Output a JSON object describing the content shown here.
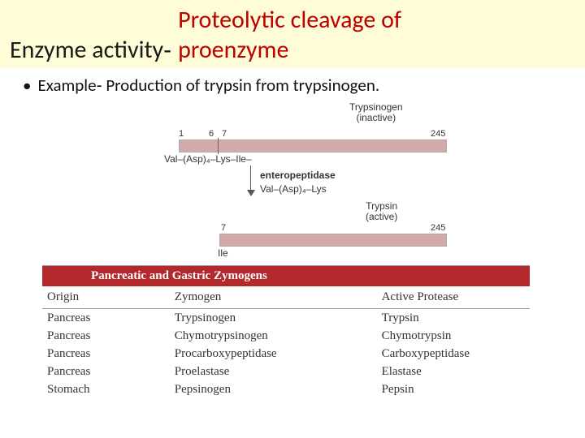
{
  "title": {
    "left": "Enzyme activity‐",
    "right_line1": "Proteolytic cleavage of",
    "right_line2": "proenzyme"
  },
  "bullet": {
    "text": "Example‐ Production of trypsin from trypsinogen."
  },
  "diagram": {
    "top_label_l1": "Trypsinogen",
    "top_label_l2": "(inactive)",
    "bar1": {
      "n1": "1",
      "n6": "6",
      "n7": "7",
      "nEnd": "245",
      "color": "#d3a9a9"
    },
    "seq1": "Val–(Asp)₄–Lys–Ile–",
    "enzyme": "enteropeptidase",
    "cleaved": "Val–(Asp)₄–Lys",
    "trypsin_l1": "Trypsin",
    "trypsin_l2": "(active)",
    "bar2": {
      "n7": "7",
      "nEnd": "245",
      "res": "Ile",
      "color": "#d3a9a9"
    }
  },
  "table": {
    "title": "Pancreatic and Gastric Zymogens",
    "title_bg": "#b3282d",
    "headers": {
      "origin": "Origin",
      "zymogen": "Zymogen",
      "active": "Active Protease"
    },
    "rows": [
      {
        "origin": "Pancreas",
        "zymogen": "Trypsinogen",
        "active": "Trypsin"
      },
      {
        "origin": "Pancreas",
        "zymogen": "Chymotrypsinogen",
        "active": "Chymotrypsin"
      },
      {
        "origin": "Pancreas",
        "zymogen": "Procarboxypeptidase",
        "active": "Carboxypeptidase"
      },
      {
        "origin": "Pancreas",
        "zymogen": "Proelastase",
        "active": "Elastase"
      },
      {
        "origin": "Stomach",
        "zymogen": "Pepsinogen",
        "active": "Pepsin"
      }
    ]
  }
}
